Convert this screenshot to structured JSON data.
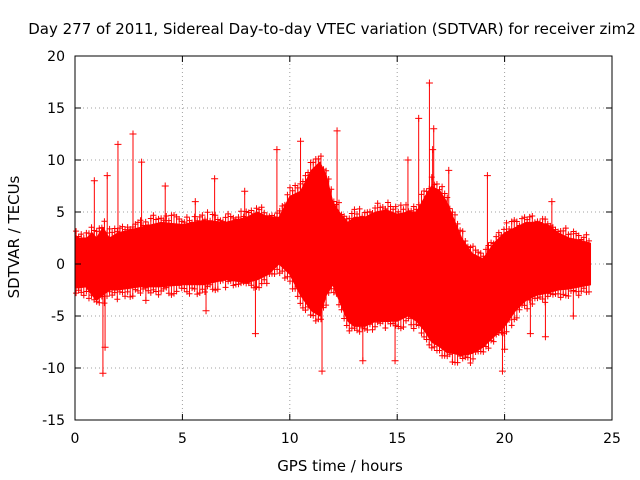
{
  "chart_data": {
    "type": "scatter",
    "title": "Day 277 of 2011, Sidereal Day-to-day VTEC variation (SDTVAR) for receiver zim2",
    "xlabel": "GPS time / hours",
    "ylabel": "SDTVAR / TECUs",
    "xlim": [
      0,
      25
    ],
    "ylim": [
      -15,
      20
    ],
    "xticks": [
      0,
      5,
      10,
      15,
      20,
      25
    ],
    "yticks": [
      -15,
      -10,
      -5,
      0,
      5,
      10,
      15,
      20
    ],
    "grid": true,
    "series_color": "#ff0000",
    "grid_color": "#a0a0a0",
    "marker": "plus",
    "envelope": {
      "name": "SDTVAR",
      "x": [
        0,
        0.2,
        0.5,
        0.8,
        1.0,
        1.3,
        1.6,
        2.0,
        3,
        4,
        5,
        6,
        7,
        8,
        8.5,
        9.0,
        9.5,
        10.0,
        10.5,
        11.0,
        11.4,
        11.7,
        12.0,
        12.3,
        12.7,
        13.0,
        13.5,
        14.0,
        14.5,
        15.0,
        15.5,
        15.9,
        16.3,
        16.6,
        17.0,
        17.3,
        17.6,
        18.0,
        18.5,
        19.0,
        19.5,
        20.0,
        20.5,
        21.0,
        21.5,
        22.0,
        22.5,
        23.0,
        23.5,
        24.0
      ],
      "upper": [
        2.8,
        2.5,
        2.4,
        3.0,
        2.5,
        3.5,
        2.5,
        3.0,
        3.5,
        4.0,
        3.8,
        4.2,
        4.0,
        4.5,
        5.0,
        4.5,
        4.5,
        6.5,
        7.0,
        9.0,
        9.8,
        8.5,
        6.0,
        5.0,
        4.0,
        4.5,
        4.5,
        5.0,
        5.2,
        4.8,
        5.0,
        5.0,
        6.5,
        7.5,
        7.0,
        6.0,
        4.5,
        2.5,
        1.0,
        0.5,
        2.0,
        3.0,
        3.5,
        4.0,
        4.0,
        3.8,
        3.0,
        2.5,
        2.3,
        2.0
      ],
      "lower": [
        -2.3,
        -2.3,
        -2.2,
        -3.0,
        -3.5,
        -3.0,
        -2.5,
        -2.5,
        -2.2,
        -2.2,
        -2.0,
        -2.0,
        -1.5,
        -1.8,
        -1.5,
        -1.0,
        0.0,
        -1.0,
        -3.0,
        -4.5,
        -5.0,
        -3.0,
        -2.0,
        -3.5,
        -5.5,
        -6.0,
        -6.0,
        -5.5,
        -5.5,
        -5.5,
        -5.0,
        -5.5,
        -6.5,
        -7.5,
        -8.0,
        -8.5,
        -8.6,
        -8.8,
        -8.6,
        -8.0,
        -7.0,
        -6.0,
        -4.5,
        -3.5,
        -3.0,
        -2.8,
        -2.5,
        -2.4,
        -2.2,
        -2.0
      ]
    },
    "outliers": {
      "x": [
        1.3,
        1.4,
        1.5,
        2.0,
        2.7,
        3.1,
        6.5,
        7.9,
        9.4,
        11.0,
        11.5,
        12.2,
        13.4,
        14.9,
        15.5,
        16.0,
        16.5,
        16.65,
        16.7,
        19.9,
        20.0,
        21.2,
        21.9,
        22.2,
        6.1,
        8.4,
        10.5,
        12.8,
        17.4,
        18.2,
        0.9,
        4.2,
        3.3,
        5.6,
        19.2,
        23.2
      ],
      "y": [
        -10.5,
        -8.0,
        8.5,
        11.5,
        12.5,
        9.8,
        8.2,
        7.0,
        11.0,
        -4.0,
        -10.3,
        12.8,
        -9.3,
        -9.3,
        10.0,
        14.0,
        17.4,
        11.0,
        13.0,
        -10.3,
        -8.2,
        -6.7,
        -7.0,
        6.0,
        -4.5,
        -6.7,
        11.8,
        -2.0,
        9.0,
        -8.7,
        8.0,
        7.5,
        -3.5,
        6.0,
        8.5,
        -5.0
      ]
    }
  }
}
